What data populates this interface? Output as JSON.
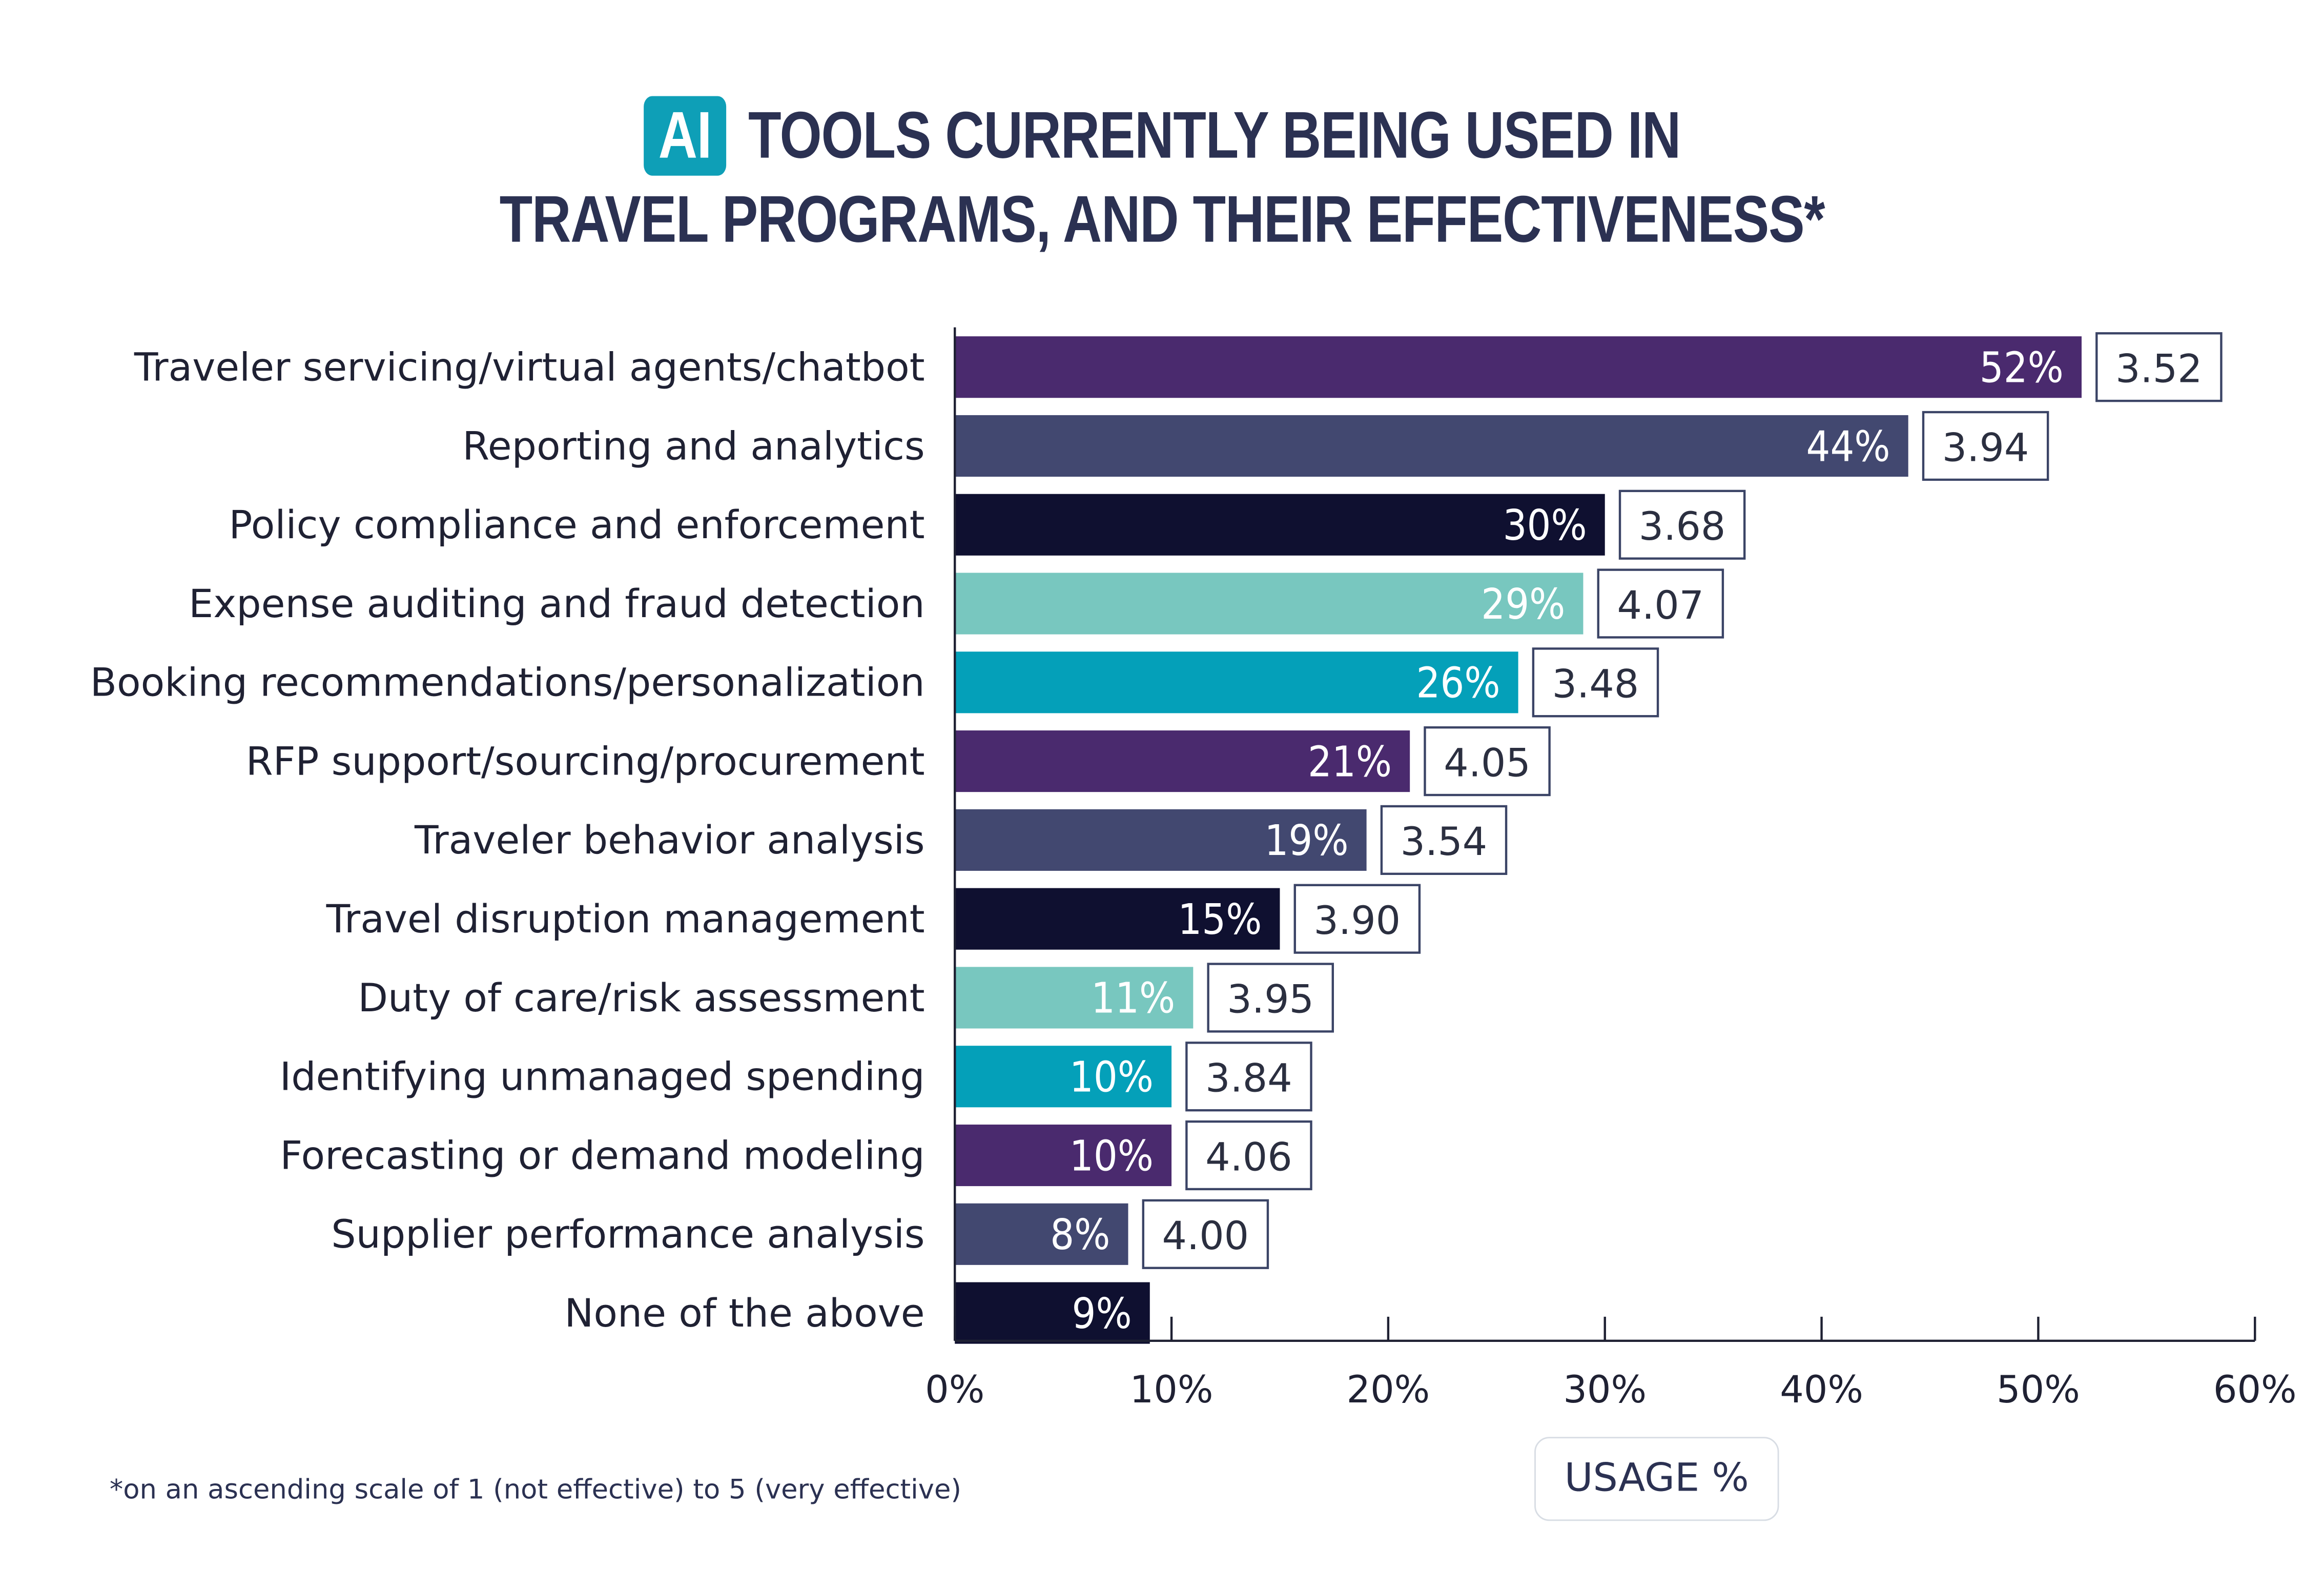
{
  "title": {
    "badge": "AI",
    "line1": "TOOLS CURRENTLY BEING USED IN",
    "line2": "TRAVEL PROGRAMS, AND THEIR EFFECTIVENESS*"
  },
  "footnote": "*on an ascending scale of 1 (not effective) to 5 (very effective)",
  "colors": {
    "purple": "#4a2a6e",
    "slate": "#424870",
    "navy": "#0f1030",
    "mint": "#78c7bf",
    "teal": "#04a0b9",
    "score_border": "#3b4466",
    "axis": "#1f2133"
  },
  "chart_data": {
    "type": "bar",
    "orientation": "horizontal",
    "xlabel": "USAGE %",
    "xlim": [
      0,
      60
    ],
    "xticks": [
      0,
      10,
      20,
      30,
      40,
      50,
      60
    ],
    "tick_suffix": "%",
    "categories": [
      "Traveler servicing/virtual agents/chatbot",
      "Reporting and analytics",
      "Policy compliance and enforcement",
      "Expense auditing and fraud detection",
      "Booking recommendations/personalization",
      "RFP support/sourcing/procurement",
      "Traveler behavior analysis",
      "Travel disruption management",
      "Duty of care/risk assessment",
      "Identifying unmanaged spending",
      "Forecasting or demand modeling",
      "Supplier performance analysis",
      "None of the above"
    ],
    "values": [
      52,
      44,
      30,
      29,
      26,
      21,
      19,
      15,
      11,
      10,
      10,
      8,
      9
    ],
    "value_labels": [
      "52%",
      "44%",
      "30%",
      "29%",
      "26%",
      "21%",
      "19%",
      "15%",
      "11%",
      "10%",
      "10%",
      "8%",
      "9%"
    ],
    "effectiveness_scores": [
      "3.52",
      "3.94",
      "3.68",
      "4.07",
      "3.48",
      "4.05",
      "3.54",
      "3.90",
      "3.95",
      "3.84",
      "4.06",
      "4.00",
      null
    ],
    "bar_colors": [
      "#4a2a6e",
      "#424870",
      "#0f1030",
      "#78c7bf",
      "#04a0b9",
      "#4a2a6e",
      "#424870",
      "#0f1030",
      "#78c7bf",
      "#04a0b9",
      "#4a2a6e",
      "#424870",
      "#0f1030"
    ],
    "grid": false,
    "legend": "none"
  }
}
